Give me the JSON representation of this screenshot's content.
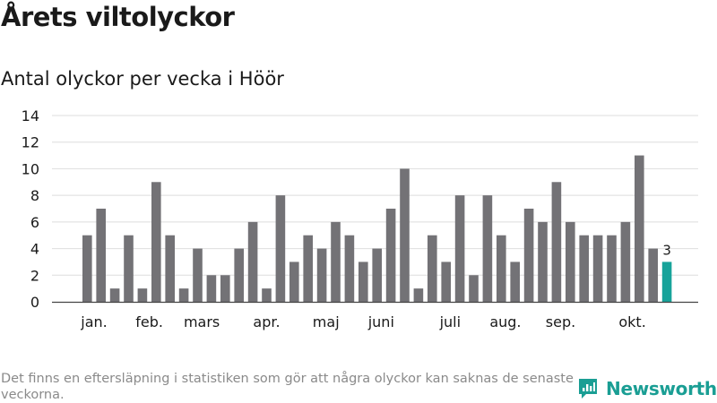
{
  "title": "Årets viltolyckor",
  "subtitle": "Antal olyckor per vecka i Höör",
  "footnote": "Det finns en eftersläpning i statistiken som gör att några olyckor kan saknas de senaste veckorna.",
  "brand": {
    "name": "Newsworthy",
    "icon": "newsworthy-logo-icon",
    "color": "#1a9e94"
  },
  "colors": {
    "bar": "#737276",
    "highlight": "#17a39a",
    "grid": "#dedede",
    "axis": "#444444"
  },
  "chart_data": {
    "type": "bar",
    "ylim": [
      0,
      14
    ],
    "yticks": [
      0,
      2,
      4,
      6,
      8,
      10,
      12,
      14
    ],
    "grid": true,
    "values": [
      5,
      7,
      1,
      5,
      1,
      9,
      5,
      1,
      4,
      2,
      2,
      4,
      6,
      1,
      8,
      3,
      5,
      4,
      6,
      5,
      3,
      4,
      7,
      10,
      1,
      5,
      3,
      8,
      2,
      8,
      5,
      3,
      7,
      6,
      9,
      6,
      5,
      5,
      5,
      6,
      11,
      4,
      3
    ],
    "highlight_index": 42,
    "highlight_label": "3",
    "month_labels": [
      {
        "label": "jan.",
        "bar_index": 0.5
      },
      {
        "label": "feb.",
        "bar_index": 4.5
      },
      {
        "label": "mars",
        "bar_index": 8.3
      },
      {
        "label": "apr.",
        "bar_index": 13.0
      },
      {
        "label": "maj",
        "bar_index": 17.3
      },
      {
        "label": "juni",
        "bar_index": 21.3
      },
      {
        "label": "juli",
        "bar_index": 26.3
      },
      {
        "label": "aug.",
        "bar_index": 30.3
      },
      {
        "label": "sep.",
        "bar_index": 34.3
      },
      {
        "label": "okt.",
        "bar_index": 39.5
      }
    ]
  }
}
